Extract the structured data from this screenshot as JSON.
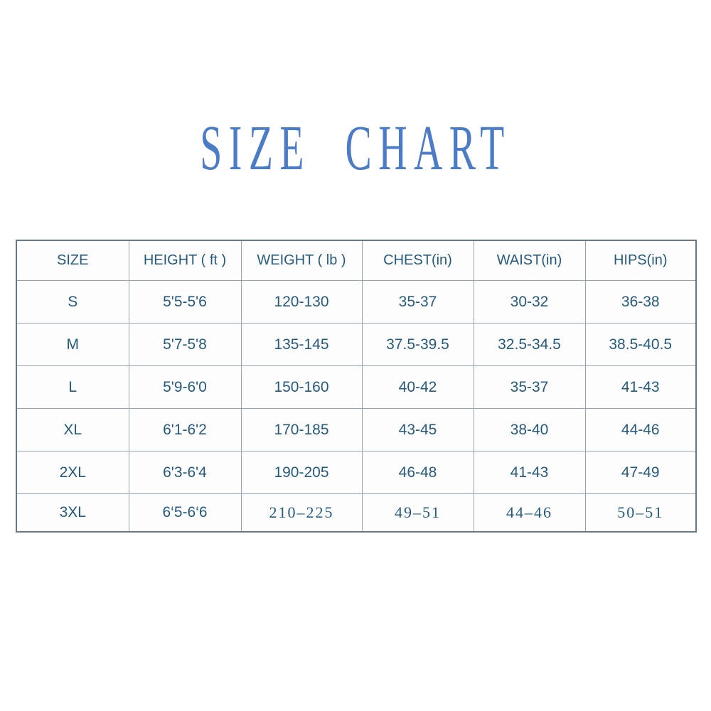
{
  "title": "SIZE CHART",
  "colors": {
    "title_blue": "#4d7cc7",
    "table_text": "#275a78",
    "border_outer": "#64788c",
    "border_inner": "#93a3b1",
    "background": "#ffffff"
  },
  "table": {
    "columns": [
      "SIZE",
      "HEIGHT ( ft )",
      "WEIGHT ( lb )",
      "CHEST(in)",
      "WAIST(in)",
      "HIPS(in)"
    ],
    "rows": [
      [
        "S",
        "5'5-5'6",
        "120-130",
        "35-37",
        "30-32",
        "36-38"
      ],
      [
        "M",
        "5'7-5'8",
        "135-145",
        "37.5-39.5",
        "32.5-34.5",
        "38.5-40.5"
      ],
      [
        "L",
        "5'9-6'0",
        "150-160",
        "40-42",
        "35-37",
        "41-43"
      ],
      [
        "XL",
        "6'1-6'2",
        "170-185",
        "43-45",
        "38-40",
        "44-46"
      ],
      [
        "2XL",
        "6'3-6'4",
        "190-205",
        "46-48",
        "41-43",
        "47-49"
      ],
      [
        "3XL",
        "6‘5-6‘6",
        "210–225",
        "49–51",
        "44–46",
        "50–51"
      ]
    ]
  }
}
